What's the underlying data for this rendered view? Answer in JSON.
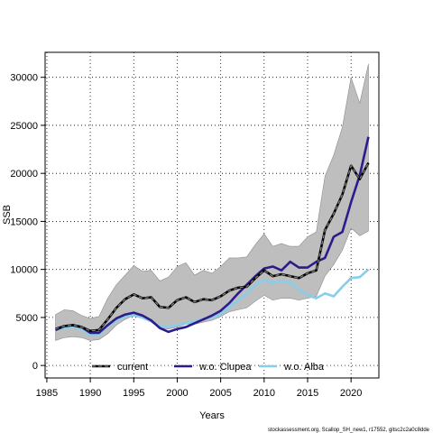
{
  "chart_data": {
    "type": "line",
    "xlabel": "Years",
    "ylabel": "SSB",
    "xlim": [
      1984.8,
      2023.2
    ],
    "ylim": [
      -1300,
      32600
    ],
    "x_ticks": [
      1985,
      1990,
      1995,
      2000,
      2005,
      2010,
      2015,
      2020
    ],
    "y_ticks": [
      0,
      5000,
      10000,
      15000,
      20000,
      25000,
      30000
    ],
    "grid": true,
    "legend_position": "bottom",
    "x": [
      1986,
      1987,
      1988,
      1989,
      1990,
      1991,
      1992,
      1993,
      1994,
      1995,
      1996,
      1997,
      1998,
      1999,
      2000,
      2001,
      2002,
      2003,
      2004,
      2005,
      2006,
      2007,
      2008,
      2009,
      2010,
      2011,
      2012,
      2013,
      2014,
      2015,
      2016,
      2017,
      2018,
      2019,
      2020,
      2021,
      2022
    ],
    "band": {
      "lower": [
        2600,
        2900,
        3000,
        2900,
        2600,
        2700,
        3300,
        4200,
        4800,
        5200,
        4900,
        4500,
        3900,
        3800,
        4000,
        4300,
        4300,
        4500,
        4700,
        5100,
        5600,
        5800,
        6000,
        6700,
        7300,
        6800,
        7000,
        7000,
        6800,
        7000,
        7200,
        9300,
        10500,
        12000,
        14300,
        13500,
        14000
      ],
      "upper": [
        5300,
        5800,
        5700,
        5200,
        4900,
        5100,
        7000,
        8400,
        9400,
        10400,
        9800,
        9900,
        8800,
        9200,
        10300,
        10700,
        9400,
        9900,
        9600,
        10300,
        11200,
        11200,
        11300,
        12600,
        13700,
        12400,
        12700,
        12400,
        12400,
        13400,
        13900,
        19700,
        21900,
        24800,
        30000,
        27300,
        31400
      ],
      "color": "#bebebe"
    },
    "series": [
      {
        "name": "current",
        "color": "#000000",
        "dashed_overlay": "#7f7f7f",
        "values": [
          3800,
          4100,
          4200,
          4000,
          3600,
          3700,
          4800,
          6000,
          6900,
          7400,
          7000,
          7100,
          6100,
          6000,
          6800,
          7100,
          6600,
          6900,
          6800,
          7200,
          7800,
          8100,
          8200,
          9100,
          9900,
          9300,
          9500,
          9300,
          9100,
          9600,
          9900,
          14100,
          15800,
          17800,
          20800,
          19400,
          21100
        ]
      },
      {
        "name": "w.o. Clupea",
        "color": "#2e1b8b",
        "values": [
          3700,
          4100,
          4200,
          4000,
          3400,
          3400,
          4200,
          4900,
          5300,
          5500,
          5200,
          4700,
          3900,
          3500,
          3800,
          4000,
          4400,
          4800,
          5200,
          5700,
          6500,
          7500,
          8400,
          9300,
          10100,
          10300,
          9900,
          10800,
          10200,
          10200,
          10800,
          11200,
          13400,
          13900,
          17000,
          19800,
          23800
        ]
      },
      {
        "name": "w.o. Alba",
        "color": "#87ceeb",
        "values": [
          3700,
          3900,
          4000,
          3800,
          3200,
          3200,
          4100,
          4700,
          5100,
          5200,
          5000,
          4600,
          4100,
          4000,
          4200,
          4400,
          4600,
          4800,
          5000,
          5300,
          6100,
          6800,
          7500,
          8400,
          8900,
          8600,
          8800,
          8600,
          7900,
          7300,
          7000,
          7500,
          7200,
          8200,
          9100,
          9200,
          10000
        ]
      }
    ]
  },
  "footer_text": "stockassessment.org, Scallop_SH_new1, r17552, gitsc2c2a0c8dde"
}
